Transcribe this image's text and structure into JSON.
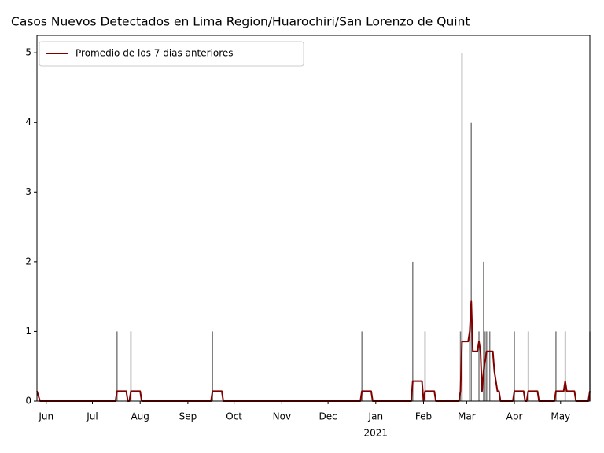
{
  "chart_data": {
    "type": "bar_line",
    "title": "Casos Nuevos Detectados en Lima Region/Huarochiri/San Lorenzo de Quint",
    "bars": {
      "color": "#7f7f7f",
      "x": [
        18460,
        18469,
        18522,
        18619,
        18652,
        18660,
        18683,
        18684,
        18689,
        18690,
        18695,
        18698,
        18699,
        18700,
        18702,
        18718,
        18727,
        18745,
        18751,
        18767
      ],
      "values": [
        1,
        1,
        1,
        1,
        2,
        1,
        1,
        5,
        1,
        4,
        1,
        2,
        1,
        1,
        1,
        1,
        1,
        1,
        1,
        1
      ]
    },
    "series": [
      {
        "name": "Promedio de los 7 dias anteriores",
        "color": "#800000",
        "x": [
          18408,
          18410,
          18459,
          18460,
          18466,
          18467,
          18468,
          18469,
          18475,
          18476,
          18521,
          18522,
          18528,
          18529,
          18618,
          18619,
          18625,
          18626,
          18651,
          18652,
          18658,
          18659,
          18660,
          18666,
          18667,
          18682,
          18683,
          18684,
          18688,
          18689,
          18690,
          18691,
          18694,
          18695,
          18696,
          18697,
          18698,
          18699,
          18700,
          18704,
          18705,
          18706,
          18707,
          18708,
          18709,
          18717,
          18718,
          18724,
          18725,
          18726,
          18727,
          18733,
          18734,
          18744,
          18745,
          18750,
          18751,
          18752,
          18757,
          18758,
          18766,
          18767
        ],
        "values": [
          0.143,
          0,
          0,
          0.143,
          0.143,
          0,
          0,
          0.143,
          0.143,
          0,
          0,
          0.143,
          0.143,
          0,
          0,
          0.143,
          0.143,
          0,
          0,
          0.286,
          0.286,
          0,
          0.143,
          0.143,
          0,
          0,
          0.143,
          0.857,
          0.857,
          1.0,
          1.429,
          0.714,
          0.714,
          0.857,
          0.714,
          0.143,
          0.429,
          0.571,
          0.714,
          0.714,
          0.429,
          0.286,
          0.143,
          0.143,
          0,
          0,
          0.143,
          0.143,
          0,
          0,
          0.143,
          0.143,
          0,
          0,
          0.143,
          0.143,
          0.286,
          0.143,
          0.143,
          0,
          0,
          0.143
        ]
      }
    ],
    "xlim": [
      18408,
      18767
    ],
    "xticks": [
      {
        "value": 18414,
        "label": "Jun"
      },
      {
        "value": 18444,
        "label": "Jul"
      },
      {
        "value": 18475,
        "label": "Aug"
      },
      {
        "value": 18506,
        "label": "Sep"
      },
      {
        "value": 18536,
        "label": "Oct"
      },
      {
        "value": 18567,
        "label": "Nov"
      },
      {
        "value": 18597,
        "label": "Dec"
      },
      {
        "value": 18628,
        "label": "Jan",
        "sublabel": "2021"
      },
      {
        "value": 18659,
        "label": "Feb"
      },
      {
        "value": 18687,
        "label": "Mar"
      },
      {
        "value": 18718,
        "label": "Apr"
      },
      {
        "value": 18748,
        "label": "May"
      }
    ],
    "ylim": [
      0,
      5.25
    ],
    "yticks": [
      0,
      1,
      2,
      3,
      4,
      5
    ],
    "legend": "upper left"
  }
}
